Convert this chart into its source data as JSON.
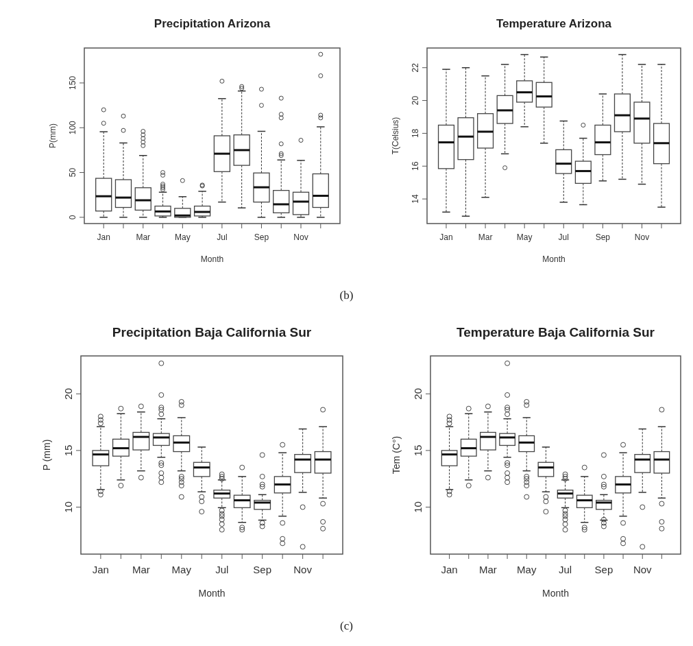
{
  "chart_data": [
    {
      "type": "box",
      "title": "Precipitation Arizona",
      "xlabel": "Month",
      "ylabel": "P(mm)",
      "categories": [
        "Jan",
        null,
        "Mar",
        null,
        "May",
        null,
        "Jul",
        null,
        "Sep",
        null,
        "Nov",
        null
      ],
      "ylim": [
        -7,
        189
      ],
      "yticks": [
        0,
        50,
        100,
        150
      ],
      "annotations": [
        "(b)"
      ],
      "boxes": [
        {
          "low": 0,
          "q1": 7,
          "median": 23.5,
          "q3": 43.5,
          "high": 95.5,
          "outliers": [
            120,
            105
          ]
        },
        {
          "low": 0,
          "q1": 11,
          "median": 22,
          "q3": 42,
          "high": 83,
          "outliers": [
            113,
            97
          ]
        },
        {
          "low": 0,
          "q1": 8,
          "median": 19,
          "q3": 33,
          "high": 69,
          "outliers": [
            96,
            92,
            88,
            84,
            80
          ]
        },
        {
          "low": 0,
          "q1": 1.5,
          "median": 6.5,
          "q3": 12.5,
          "high": 28,
          "outliers": [
            50,
            47,
            37,
            35,
            33,
            31
          ]
        },
        {
          "low": 0,
          "q1": 0,
          "median": 2,
          "q3": 10,
          "high": 23,
          "outliers": [
            41
          ]
        },
        {
          "low": 0,
          "q1": 1.5,
          "median": 6,
          "q3": 12.5,
          "high": 29,
          "outliers": [
            36,
            35
          ]
        },
        {
          "low": 17,
          "q1": 51,
          "median": 71,
          "q3": 91,
          "high": 132.5,
          "outliers": [
            152
          ]
        },
        {
          "low": 10.5,
          "q1": 58,
          "median": 75,
          "q3": 92,
          "high": 141,
          "outliers": [
            146,
            144
          ]
        },
        {
          "low": 0,
          "q1": 17,
          "median": 33.5,
          "q3": 49.5,
          "high": 96,
          "outliers": [
            143,
            125
          ]
        },
        {
          "low": 0,
          "q1": 5,
          "median": 14.5,
          "q3": 30,
          "high": 64,
          "outliers": [
            133,
            115,
            111,
            82,
            71,
            69
          ]
        },
        {
          "low": 0,
          "q1": 3,
          "median": 17.5,
          "q3": 28,
          "high": 63.5,
          "outliers": [
            86
          ]
        },
        {
          "low": 0,
          "q1": 11,
          "median": 24,
          "q3": 48.5,
          "high": 101,
          "outliers": [
            182,
            158,
            114,
            111
          ]
        }
      ]
    },
    {
      "type": "box",
      "title": "Temperature Arizona",
      "xlabel": "Month",
      "ylabel": "T(Celsius)",
      "categories": [
        "Jan",
        null,
        "Mar",
        null,
        "May",
        null,
        "Jul",
        null,
        "Sep",
        null,
        "Nov",
        null
      ],
      "ylim": [
        12.5,
        23.2
      ],
      "yticks": [
        14,
        16,
        18,
        20,
        22
      ],
      "boxes": [
        {
          "low": 13.2,
          "q1": 15.85,
          "median": 17.45,
          "q3": 18.5,
          "high": 21.9
        },
        {
          "low": 12.95,
          "q1": 16.4,
          "median": 17.8,
          "q3": 18.95,
          "high": 22
        },
        {
          "low": 14.1,
          "q1": 17.1,
          "median": 18.1,
          "q3": 19.2,
          "high": 21.5
        },
        {
          "low": 16.75,
          "q1": 18.6,
          "median": 19.4,
          "q3": 20.3,
          "high": 22.2,
          "outliers": [
            15.9
          ]
        },
        {
          "low": 18.4,
          "q1": 19.9,
          "median": 20.5,
          "q3": 21.2,
          "high": 22.8
        },
        {
          "low": 17.4,
          "q1": 19.6,
          "median": 20.25,
          "q3": 21.1,
          "high": 22.65
        },
        {
          "low": 13.8,
          "q1": 15.55,
          "median": 16.15,
          "q3": 17,
          "high": 18.75
        },
        {
          "low": 13.65,
          "q1": 14.95,
          "median": 15.7,
          "q3": 16.3,
          "high": 17.7,
          "outliers": [
            18.5
          ]
        },
        {
          "low": 15.1,
          "q1": 16.7,
          "median": 17.45,
          "q3": 18.5,
          "high": 20.4
        },
        {
          "low": 15.2,
          "q1": 18.1,
          "median": 19.1,
          "q3": 20.4,
          "high": 22.8
        },
        {
          "low": 14.9,
          "q1": 17.4,
          "median": 18.9,
          "q3": 19.9,
          "high": 22.2
        },
        {
          "low": 13.5,
          "q1": 16.15,
          "median": 17.4,
          "q3": 18.6,
          "high": 22.2
        }
      ]
    },
    {
      "type": "box",
      "title": "Precipitation Baja California Sur",
      "xlabel": "Month",
      "ylabel": "P (mm)",
      "categories": [
        "Jan",
        null,
        "Mar",
        null,
        "May",
        null,
        "Jul",
        null,
        "Sep",
        null,
        "Nov",
        null
      ],
      "ylim": [
        5.85,
        23.35
      ],
      "yticks": [
        10,
        15,
        20
      ],
      "annotations": [
        "(c)"
      ],
      "boxes": [
        {
          "low": 11.55,
          "q1": 13.65,
          "median": 14.65,
          "q3": 15,
          "high": 17.1,
          "outliers": [
            18,
            17.7,
            17.4,
            11.4,
            11.1
          ]
        },
        {
          "low": 12.4,
          "q1": 14.5,
          "median": 15.2,
          "q3": 16,
          "high": 18.25,
          "outliers": [
            18.7,
            11.9
          ]
        },
        {
          "low": 13.2,
          "q1": 15.05,
          "median": 16.2,
          "q3": 16.6,
          "high": 18.4,
          "outliers": [
            18.9,
            12.6
          ]
        },
        {
          "low": 14.4,
          "q1": 15.45,
          "median": 16.15,
          "q3": 16.5,
          "high": 17.8,
          "outliers": [
            22.7,
            19.9,
            18.8,
            18.6,
            18.2,
            13.9,
            13.7,
            13,
            12.6,
            12.2
          ]
        },
        {
          "low": 13.2,
          "q1": 14.9,
          "median": 15.7,
          "q3": 16.3,
          "high": 17.9,
          "outliers": [
            19.3,
            19,
            12.7,
            12.5,
            12.2,
            11.9,
            10.9
          ]
        },
        {
          "low": 11.35,
          "q1": 12.7,
          "median": 13.5,
          "q3": 13.95,
          "high": 15.3,
          "outliers": [
            10.9,
            10.5,
            9.6
          ]
        },
        {
          "low": 9.95,
          "q1": 10.8,
          "median": 11.2,
          "q3": 11.5,
          "high": 12.4,
          "outliers": [
            12.9,
            12.7,
            12.5,
            9.7,
            9.4,
            9.2,
            8.9,
            8.5,
            8
          ]
        },
        {
          "low": 8.65,
          "q1": 9.95,
          "median": 10.6,
          "q3": 11.05,
          "high": 12.7,
          "outliers": [
            13.5,
            8.2,
            8
          ]
        },
        {
          "low": 8.85,
          "q1": 9.8,
          "median": 10.4,
          "q3": 10.6,
          "high": 11.1,
          "outliers": [
            14.6,
            12.7,
            12,
            11.8,
            8.6,
            8.3
          ]
        },
        {
          "low": 9.2,
          "q1": 11.25,
          "median": 12,
          "q3": 12.7,
          "high": 14.8,
          "outliers": [
            15.5,
            8.6,
            7.2,
            6.8
          ]
        },
        {
          "low": 11.3,
          "q1": 13.05,
          "median": 14.2,
          "q3": 14.65,
          "high": 16.9,
          "outliers": [
            10,
            6.5
          ]
        },
        {
          "low": 10.8,
          "q1": 13,
          "median": 14.2,
          "q3": 14.9,
          "high": 17.1,
          "outliers": [
            18.6,
            10.3,
            8.7,
            8.1
          ]
        }
      ]
    },
    {
      "type": "box",
      "title": "Temperature Baja California Sur",
      "xlabel": "Month",
      "ylabel": "Tem (C°)",
      "categories": [
        "Jan",
        null,
        "Mar",
        null,
        "May",
        null,
        "Jul",
        null,
        "Sep",
        null,
        "Nov",
        null
      ],
      "ylim": [
        5.85,
        23.35
      ],
      "yticks": [
        10,
        15,
        20
      ],
      "boxes": [
        {
          "low": 11.55,
          "q1": 13.65,
          "median": 14.65,
          "q3": 15,
          "high": 17.1,
          "outliers": [
            18,
            17.7,
            17.4,
            11.4,
            11.1
          ]
        },
        {
          "low": 12.4,
          "q1": 14.5,
          "median": 15.2,
          "q3": 16,
          "high": 18.25,
          "outliers": [
            18.7,
            11.9
          ]
        },
        {
          "low": 13.2,
          "q1": 15.05,
          "median": 16.2,
          "q3": 16.6,
          "high": 18.4,
          "outliers": [
            18.9,
            12.6
          ]
        },
        {
          "low": 14.4,
          "q1": 15.45,
          "median": 16.15,
          "q3": 16.5,
          "high": 17.8,
          "outliers": [
            22.7,
            19.9,
            18.8,
            18.6,
            18.2,
            13.9,
            13.7,
            13,
            12.6,
            12.2
          ]
        },
        {
          "low": 13.2,
          "q1": 14.9,
          "median": 15.7,
          "q3": 16.3,
          "high": 17.9,
          "outliers": [
            19.3,
            19,
            12.7,
            12.5,
            12.2,
            11.9,
            10.9
          ]
        },
        {
          "low": 11.35,
          "q1": 12.7,
          "median": 13.5,
          "q3": 13.95,
          "high": 15.3,
          "outliers": [
            10.9,
            10.5,
            9.6
          ]
        },
        {
          "low": 9.95,
          "q1": 10.8,
          "median": 11.2,
          "q3": 11.5,
          "high": 12.4,
          "outliers": [
            12.9,
            12.7,
            12.5,
            9.7,
            9.4,
            9.2,
            8.9,
            8.5,
            8
          ]
        },
        {
          "low": 8.65,
          "q1": 9.95,
          "median": 10.6,
          "q3": 11.05,
          "high": 12.7,
          "outliers": [
            13.5,
            8.2,
            8
          ]
        },
        {
          "low": 8.85,
          "q1": 9.8,
          "median": 10.4,
          "q3": 10.6,
          "high": 11.1,
          "outliers": [
            14.6,
            12.7,
            12,
            11.8,
            8.9,
            8.6,
            8.3
          ]
        },
        {
          "low": 9.2,
          "q1": 11.25,
          "median": 12,
          "q3": 12.7,
          "high": 14.8,
          "outliers": [
            15.5,
            8.6,
            7.2,
            6.8
          ]
        },
        {
          "low": 11.3,
          "q1": 13.05,
          "median": 14.2,
          "q3": 14.65,
          "high": 16.9,
          "outliers": [
            10,
            6.5
          ]
        },
        {
          "low": 10.8,
          "q1": 13,
          "median": 14.2,
          "q3": 14.9,
          "high": 17.1,
          "outliers": [
            18.6,
            10.3,
            8.7,
            8.1
          ]
        }
      ]
    }
  ]
}
